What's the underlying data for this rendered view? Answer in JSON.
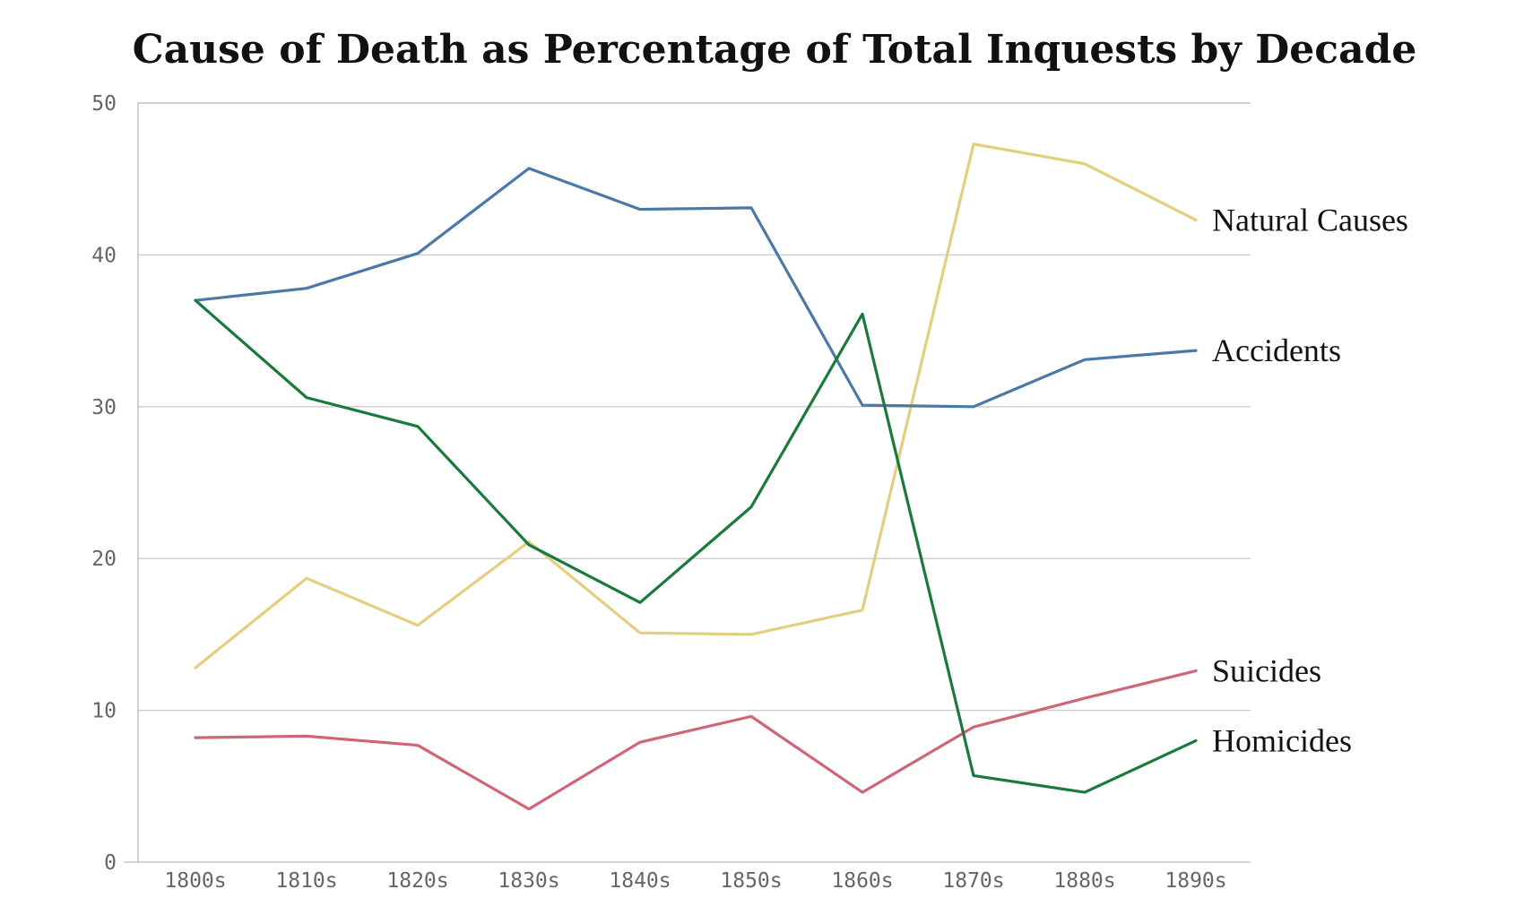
{
  "chart_data": {
    "type": "line",
    "title": "Cause of Death as Percentage of Total Inquests by Decade",
    "xlabel": "",
    "ylabel": "",
    "categories": [
      "1800s",
      "1810s",
      "1820s",
      "1830s",
      "1840s",
      "1850s",
      "1860s",
      "1870s",
      "1880s",
      "1890s"
    ],
    "ylim": [
      0,
      50
    ],
    "yticks": [
      0,
      10,
      20,
      30,
      40,
      50
    ],
    "grid": true,
    "legend": "direct labels at right end of lines",
    "series": [
      {
        "name": "Natural Causes",
        "color": "#e3cf7e",
        "values": [
          12.8,
          18.7,
          15.6,
          21.1,
          15.1,
          15.0,
          16.6,
          47.3,
          46.0,
          42.3
        ]
      },
      {
        "name": "Accidents",
        "color": "#4a78a8",
        "values": [
          37.0,
          37.8,
          40.1,
          45.7,
          43.0,
          43.1,
          30.1,
          30.0,
          33.1,
          33.7
        ]
      },
      {
        "name": "Suicides",
        "color": "#cf6677",
        "values": [
          8.2,
          8.3,
          7.7,
          3.5,
          7.9,
          9.6,
          4.6,
          8.9,
          10.8,
          12.6
        ]
      },
      {
        "name": "Homicides",
        "color": "#1a7a3c",
        "values": [
          37.0,
          30.6,
          28.7,
          20.9,
          17.1,
          23.4,
          36.1,
          5.7,
          4.6,
          8.0
        ]
      }
    ]
  },
  "style": {
    "grid_color": "#cccccc",
    "axis_color": "#bbbbbb",
    "tick_color": "#666666"
  }
}
